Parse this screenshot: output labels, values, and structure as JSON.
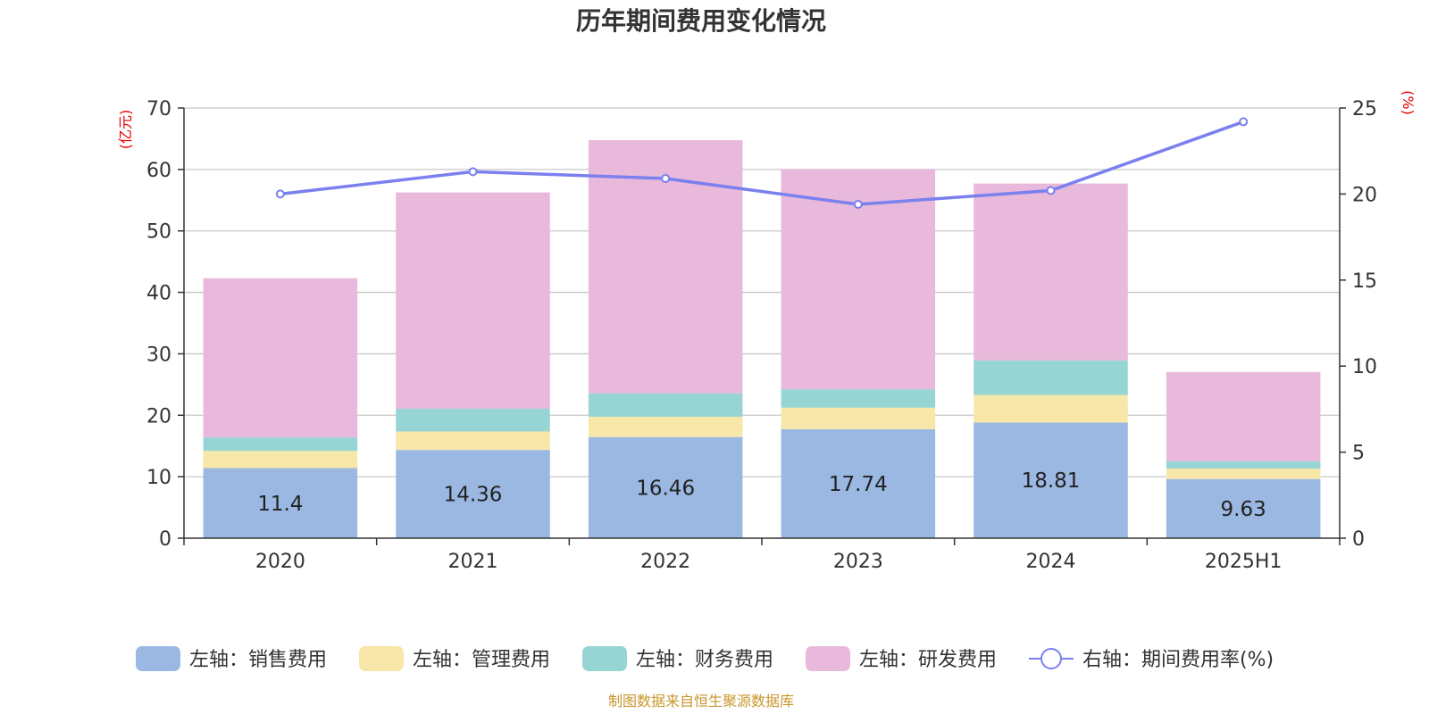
{
  "chart_data": {
    "type": "bar",
    "title": "历年期间费用变化情况",
    "left_unit": "(亿元)",
    "right_unit": "(%)",
    "categories": [
      "2020",
      "2021",
      "2022",
      "2023",
      "2024",
      "2025H1"
    ],
    "left_ylim": [
      0,
      70
    ],
    "left_ticks": [
      0,
      10,
      20,
      30,
      40,
      50,
      60,
      70
    ],
    "right_ylim": [
      0,
      25
    ],
    "right_ticks": [
      0,
      5,
      10,
      15,
      20,
      25
    ],
    "grid": true,
    "legend_position": "bottom",
    "series": [
      {
        "name": "左轴：销售费用",
        "axis": "left",
        "type": "bar",
        "stack": "total",
        "color": "#9bb8e3",
        "values": [
          11.4,
          14.36,
          16.46,
          17.74,
          18.81,
          9.63
        ],
        "labels": [
          "11.4",
          "14.36",
          "16.46",
          "17.74",
          "18.81",
          "9.63"
        ]
      },
      {
        "name": "左轴：管理费用",
        "axis": "left",
        "type": "bar",
        "stack": "total",
        "color": "#f7e7a9",
        "values": [
          2.8,
          3.0,
          3.3,
          3.5,
          4.5,
          1.7
        ]
      },
      {
        "name": "左轴：财务费用",
        "axis": "left",
        "type": "bar",
        "stack": "total",
        "color": "#97d4d4",
        "values": [
          2.2,
          3.7,
          3.8,
          3.0,
          5.6,
          1.2
        ]
      },
      {
        "name": "左轴：研发费用",
        "axis": "left",
        "type": "bar",
        "stack": "total",
        "color": "#e8b9da",
        "values": [
          25.9,
          35.2,
          41.2,
          35.8,
          28.8,
          14.5
        ]
      },
      {
        "name": "右轴：期间费用率(%)",
        "axis": "right",
        "type": "line",
        "color": "#7b80ef",
        "values": [
          20.0,
          21.3,
          20.9,
          19.4,
          20.2,
          24.2
        ]
      }
    ],
    "source": "制图数据来自恒生聚源数据库"
  }
}
